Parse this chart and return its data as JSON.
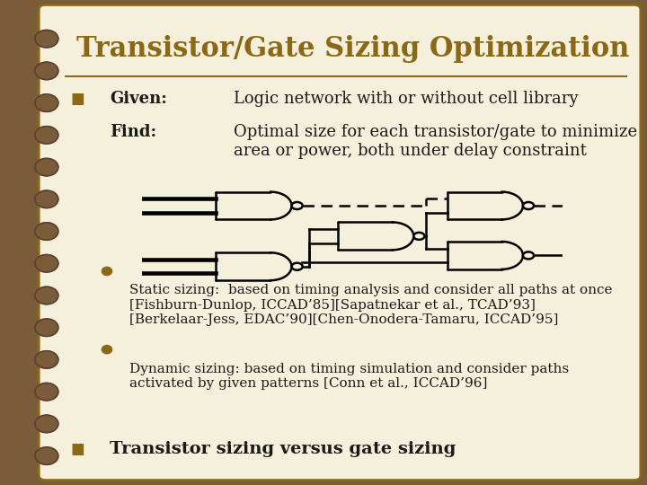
{
  "title": "Transistor/Gate Sizing Optimization",
  "title_color": "#8B6914",
  "title_fontsize": 22,
  "bg_color": "#F5F0DC",
  "border_color": "#8B6914",
  "slide_bg": "#7A5C3A",
  "text_color": "#1a1a1a",
  "bullet_color": "#8B6914",
  "bullet1_label": "Given:",
  "bullet1_text": "Logic network with or without cell library",
  "bullet2_label": "Find:",
  "bullet2_text": "Optimal size for each transistor/gate to minimize\narea or power, both under delay constraint",
  "static_text": "Static sizing:  based on timing analysis and consider all paths at once\n[Fishburn-Dunlop, ICCAD’85][Sapatnekar et al., TCAD’93]\n[Berkelaar-Jess, EDAC’90][Chen-Onodera-Tamaru, ICCAD’95]",
  "dynamic_text": "Dynamic sizing: based on timing simulation and consider paths\nactivated by given patterns [Conn et al., ICCAD’96]",
  "bottom_bullet": "Transistor sizing versus gate sizing",
  "body_fontsize": 13,
  "small_fontsize": 11.0
}
